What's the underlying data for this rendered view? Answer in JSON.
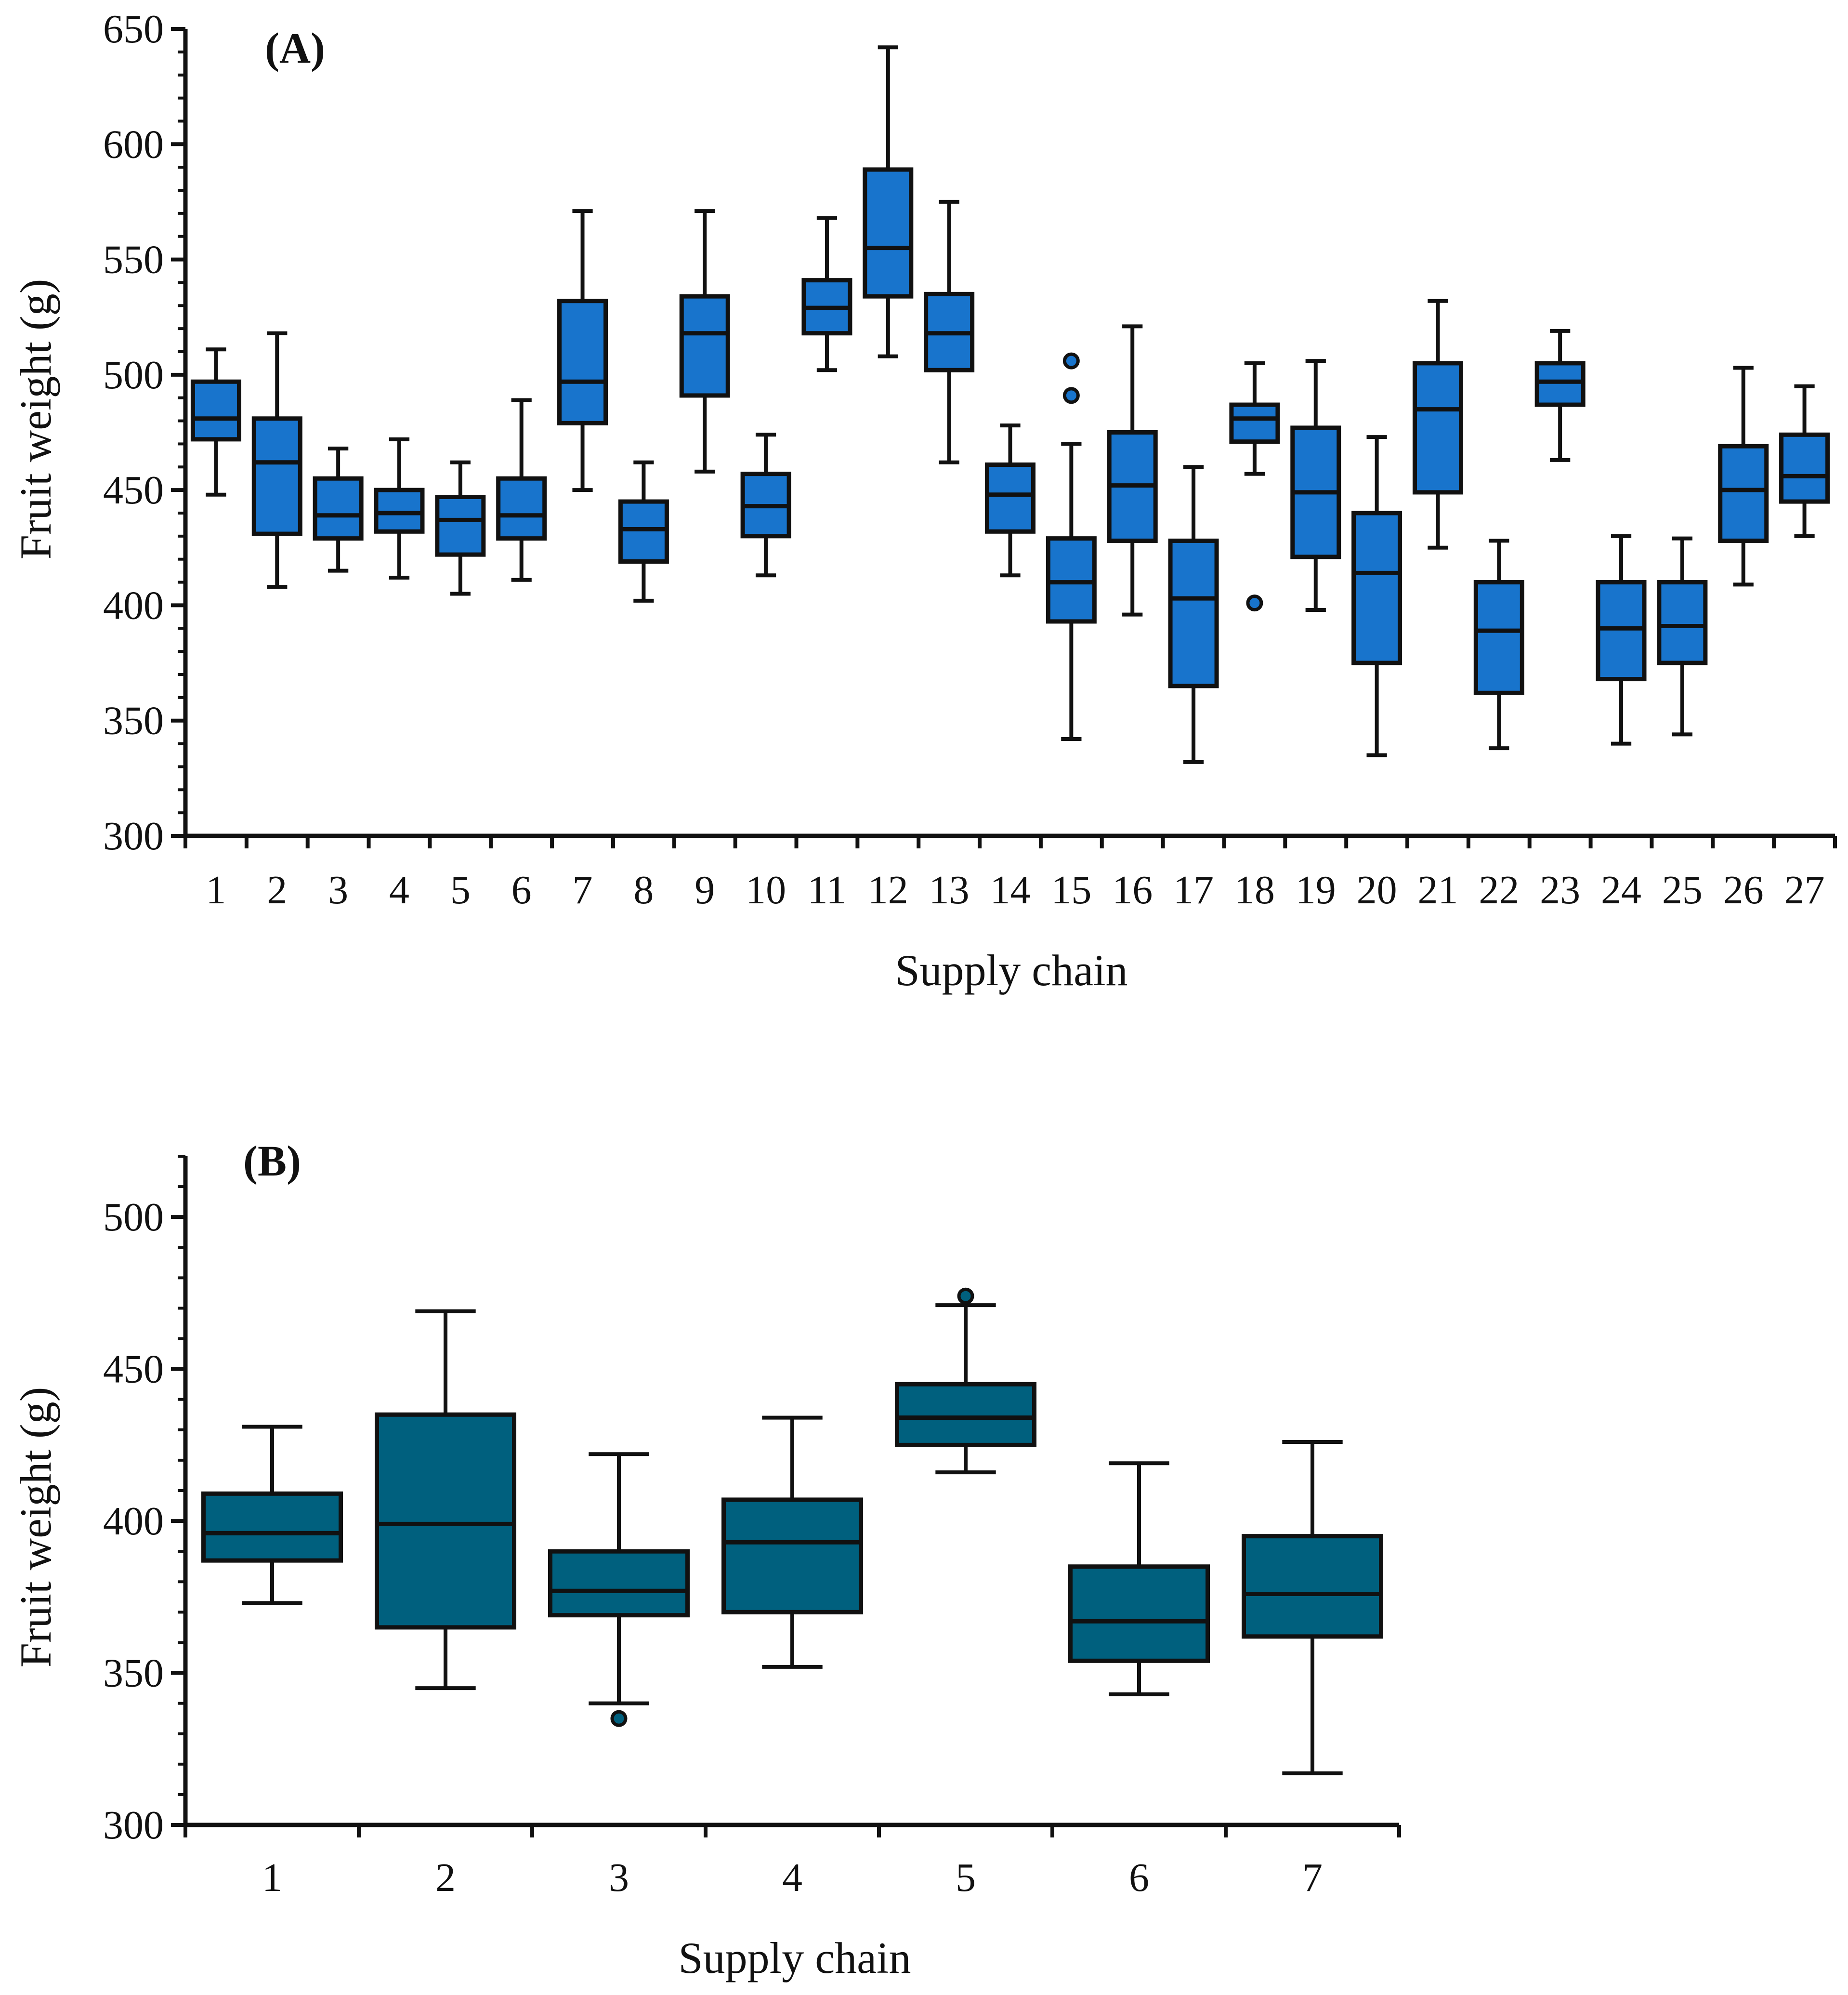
{
  "colors": {
    "boxA": "#1874CC",
    "boxB": "#00607E",
    "stroke": "#111111"
  },
  "chart_data": [
    {
      "type": "box",
      "panel": "(A)",
      "xlabel": "Supply chain",
      "ylabel": "Fruit weight (g)",
      "ylim": [
        300,
        650
      ],
      "yticks": [
        300,
        350,
        400,
        450,
        500,
        550,
        600,
        650
      ],
      "yticklabels": [
        "300",
        "350",
        "400",
        "450",
        "500",
        "550",
        "600",
        "650"
      ],
      "categories": [
        "1",
        "2",
        "3",
        "4",
        "5",
        "6",
        "7",
        "8",
        "9",
        "10",
        "11",
        "12",
        "13",
        "14",
        "15",
        "16",
        "17",
        "18",
        "19",
        "20",
        "21",
        "22",
        "23",
        "24",
        "25",
        "26",
        "27"
      ],
      "boxes": [
        {
          "min": 448,
          "q1": 472,
          "median": 481,
          "q3": 497,
          "max": 511,
          "outliers": []
        },
        {
          "min": 408,
          "q1": 431,
          "median": 462,
          "q3": 481,
          "max": 518,
          "outliers": []
        },
        {
          "min": 415,
          "q1": 429,
          "median": 439,
          "q3": 455,
          "max": 468,
          "outliers": []
        },
        {
          "min": 412,
          "q1": 432,
          "median": 440,
          "q3": 450,
          "max": 472,
          "outliers": []
        },
        {
          "min": 405,
          "q1": 422,
          "median": 437,
          "q3": 447,
          "max": 462,
          "outliers": []
        },
        {
          "min": 411,
          "q1": 429,
          "median": 439,
          "q3": 455,
          "max": 489,
          "outliers": []
        },
        {
          "min": 450,
          "q1": 479,
          "median": 497,
          "q3": 532,
          "max": 571,
          "outliers": []
        },
        {
          "min": 402,
          "q1": 419,
          "median": 433,
          "q3": 445,
          "max": 462,
          "outliers": []
        },
        {
          "min": 458,
          "q1": 491,
          "median": 518,
          "q3": 534,
          "max": 571,
          "outliers": []
        },
        {
          "min": 413,
          "q1": 430,
          "median": 443,
          "q3": 457,
          "max": 474,
          "outliers": []
        },
        {
          "min": 502,
          "q1": 518,
          "median": 529,
          "q3": 541,
          "max": 568,
          "outliers": []
        },
        {
          "min": 508,
          "q1": 534,
          "median": 555,
          "q3": 589,
          "max": 642,
          "outliers": []
        },
        {
          "min": 462,
          "q1": 502,
          "median": 518,
          "q3": 535,
          "max": 575,
          "outliers": []
        },
        {
          "min": 413,
          "q1": 432,
          "median": 448,
          "q3": 461,
          "max": 478,
          "outliers": []
        },
        {
          "min": 342,
          "q1": 393,
          "median": 410,
          "q3": 429,
          "max": 470,
          "outliers": [
            491,
            506
          ]
        },
        {
          "min": 396,
          "q1": 428,
          "median": 452,
          "q3": 475,
          "max": 521,
          "outliers": []
        },
        {
          "min": 332,
          "q1": 365,
          "median": 403,
          "q3": 428,
          "max": 460,
          "outliers": []
        },
        {
          "min": 457,
          "q1": 471,
          "median": 481,
          "q3": 487,
          "max": 505,
          "outliers": [
            401
          ]
        },
        {
          "min": 398,
          "q1": 421,
          "median": 449,
          "q3": 477,
          "max": 506,
          "outliers": []
        },
        {
          "min": 335,
          "q1": 375,
          "median": 414,
          "q3": 440,
          "max": 473,
          "outliers": []
        },
        {
          "min": 425,
          "q1": 449,
          "median": 485,
          "q3": 505,
          "max": 532,
          "outliers": []
        },
        {
          "min": 338,
          "q1": 362,
          "median": 389,
          "q3": 410,
          "max": 428,
          "outliers": []
        },
        {
          "min": 463,
          "q1": 487,
          "median": 497,
          "q3": 505,
          "max": 519,
          "outliers": []
        },
        {
          "min": 340,
          "q1": 368,
          "median": 390,
          "q3": 410,
          "max": 430,
          "outliers": []
        },
        {
          "min": 344,
          "q1": 375,
          "median": 391,
          "q3": 410,
          "max": 429,
          "outliers": []
        },
        {
          "min": 409,
          "q1": 428,
          "median": 450,
          "q3": 469,
          "max": 503,
          "outliers": []
        },
        {
          "min": 430,
          "q1": 445,
          "median": 456,
          "q3": 474,
          "max": 495,
          "outliers": []
        }
      ]
    },
    {
      "type": "box",
      "panel": "(B)",
      "xlabel": "Supply chain",
      "ylabel": "Fruit weight (g)",
      "ylim": [
        300,
        520
      ],
      "yticks": [
        300,
        350,
        400,
        450,
        500
      ],
      "yticklabels": [
        "300",
        "350",
        "400",
        "450",
        "500"
      ],
      "categories": [
        "1",
        "2",
        "3",
        "4",
        "5",
        "6",
        "7"
      ],
      "boxes": [
        {
          "min": 373,
          "q1": 387,
          "median": 396,
          "q3": 409,
          "max": 431,
          "outliers": []
        },
        {
          "min": 345,
          "q1": 365,
          "median": 399,
          "q3": 435,
          "max": 469,
          "outliers": []
        },
        {
          "min": 340,
          "q1": 369,
          "median": 377,
          "q3": 390,
          "max": 422,
          "outliers": [
            335
          ]
        },
        {
          "min": 352,
          "q1": 370,
          "median": 393,
          "q3": 407,
          "max": 434,
          "outliers": []
        },
        {
          "min": 416,
          "q1": 425,
          "median": 434,
          "q3": 445,
          "max": 471,
          "outliers": [
            474
          ]
        },
        {
          "min": 343,
          "q1": 354,
          "median": 367,
          "q3": 385,
          "max": 419,
          "outliers": []
        },
        {
          "min": 317,
          "q1": 362,
          "median": 376,
          "q3": 395,
          "max": 426,
          "outliers": []
        }
      ]
    }
  ]
}
